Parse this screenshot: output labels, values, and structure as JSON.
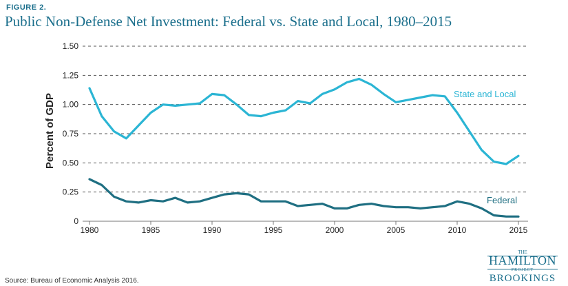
{
  "figure_label": "FIGURE 2.",
  "title": "Public Non-Defense Net Investment: Federal vs. State and Local, 1980–2015",
  "source": "Source: Bureau of Economic Analysis 2016.",
  "logo": {
    "the": "THE",
    "hamilton": "HAMILTON",
    "project": "PROJECT",
    "brookings": "BROOKINGS"
  },
  "colors": {
    "title": "#1b6f8c",
    "state_local": "#2bb5d4",
    "federal": "#1f6f82",
    "grid": "#555555"
  },
  "chart_data": {
    "type": "line",
    "title": "Public Non-Defense Net Investment: Federal vs. State and Local, 1980–2015",
    "xlabel": "",
    "ylabel": "Percent of GDP",
    "xlim": [
      1980,
      2015
    ],
    "ylim": [
      0,
      1.5
    ],
    "xticks": [
      1980,
      1985,
      1990,
      1995,
      2000,
      2005,
      2010,
      2015
    ],
    "xtick_labels": [
      "1980",
      "1985",
      "1990",
      "1995",
      "2000",
      "2005",
      "2010",
      "2015"
    ],
    "yticks": [
      0,
      0.25,
      0.5,
      0.75,
      1.0,
      1.25,
      1.5
    ],
    "ytick_labels": [
      "0",
      "0.25",
      "0.50",
      "0.75",
      "1.00",
      "1.25",
      "1.50"
    ],
    "grid": true,
    "x": [
      1980,
      1981,
      1982,
      1983,
      1984,
      1985,
      1986,
      1987,
      1988,
      1989,
      1990,
      1991,
      1992,
      1993,
      1994,
      1995,
      1996,
      1997,
      1998,
      1999,
      2000,
      2001,
      2002,
      2003,
      2004,
      2005,
      2006,
      2007,
      2008,
      2009,
      2010,
      2011,
      2012,
      2013,
      2014,
      2015
    ],
    "series": [
      {
        "name": "State and Local",
        "color": "#2bb5d4",
        "values": [
          1.14,
          0.9,
          0.77,
          0.71,
          0.82,
          0.93,
          1.0,
          0.99,
          1.0,
          1.01,
          1.09,
          1.08,
          1.0,
          0.91,
          0.9,
          0.93,
          0.95,
          1.03,
          1.01,
          1.09,
          1.13,
          1.19,
          1.22,
          1.17,
          1.09,
          1.02,
          1.04,
          1.06,
          1.08,
          1.07,
          0.93,
          0.77,
          0.61,
          0.51,
          0.49,
          0.56
        ]
      },
      {
        "name": "Federal",
        "color": "#1f6f82",
        "values": [
          0.36,
          0.31,
          0.21,
          0.17,
          0.16,
          0.18,
          0.17,
          0.2,
          0.16,
          0.17,
          0.2,
          0.23,
          0.24,
          0.23,
          0.17,
          0.17,
          0.17,
          0.13,
          0.14,
          0.15,
          0.11,
          0.11,
          0.14,
          0.15,
          0.13,
          0.12,
          0.12,
          0.11,
          0.12,
          0.13,
          0.17,
          0.15,
          0.11,
          0.05,
          0.04,
          0.04
        ]
      }
    ]
  }
}
